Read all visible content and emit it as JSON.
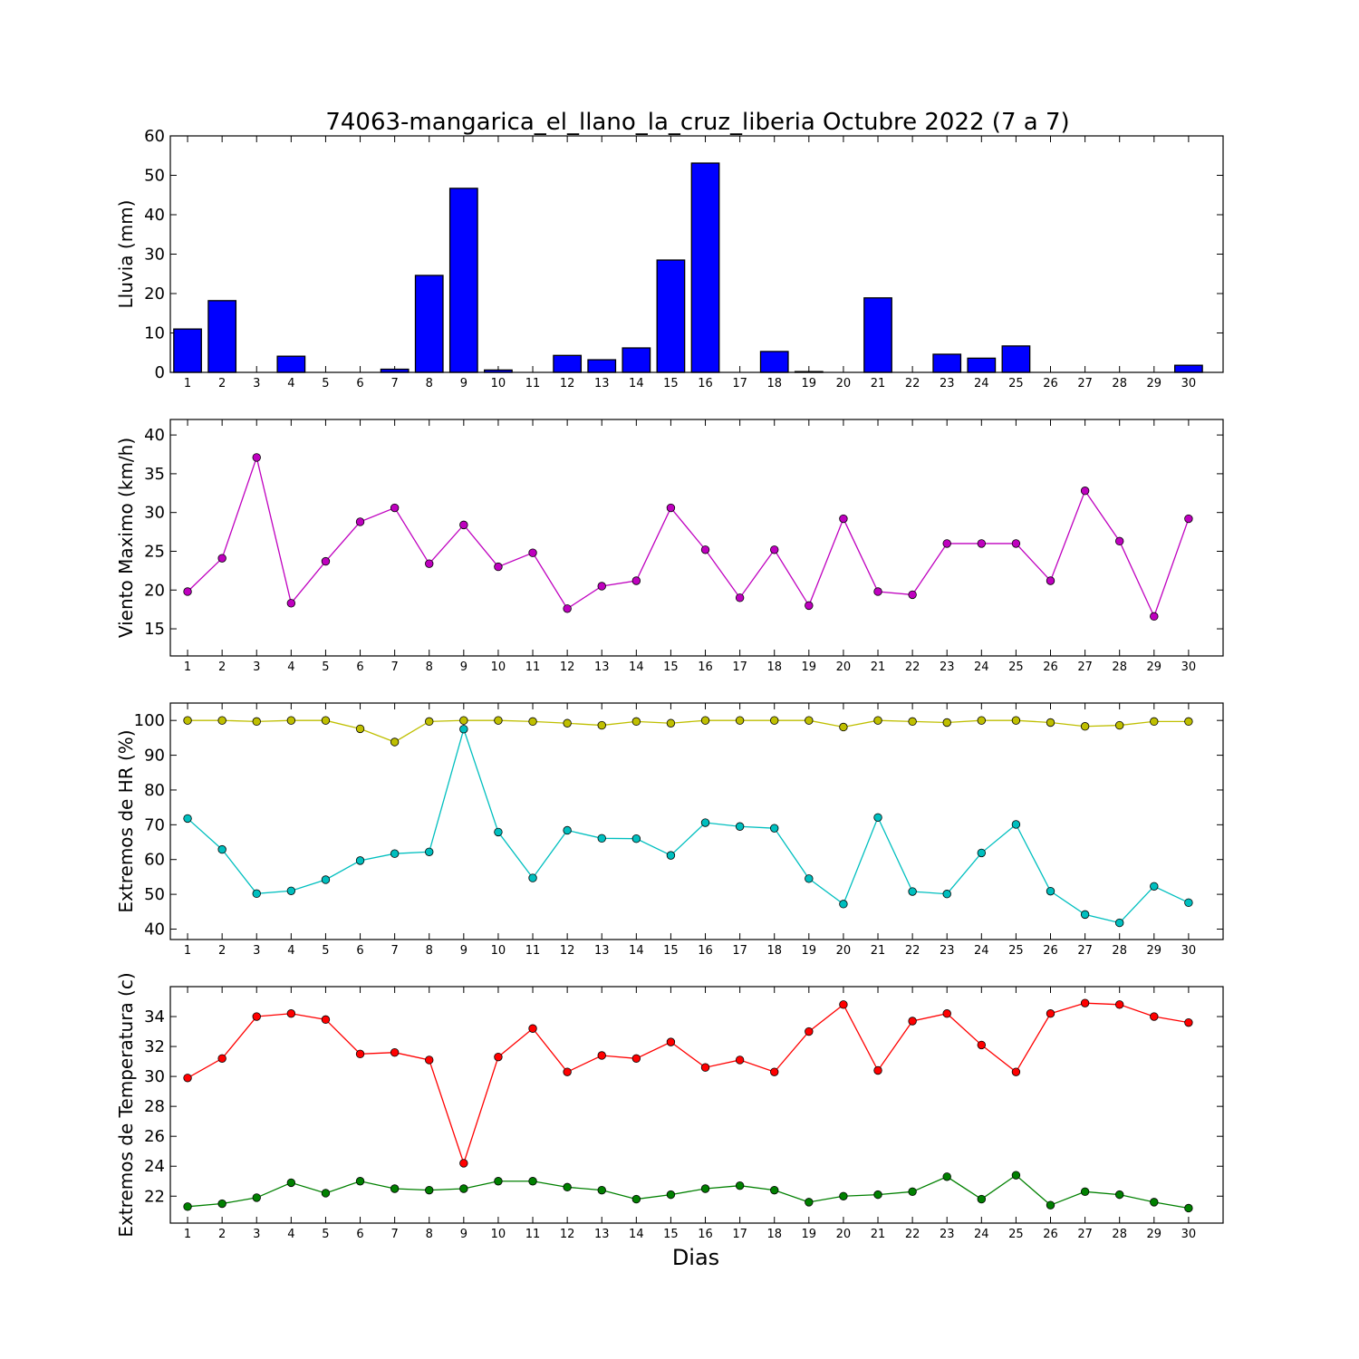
{
  "figure": {
    "title": "74063-mangarica_el_llano_la_cruz_liberia Octubre 2022  (7 a 7)",
    "xlabel": "Dias"
  },
  "chart_data": [
    {
      "type": "bar",
      "ylabel": "Lluvia (mm)",
      "categories": [
        1,
        2,
        3,
        4,
        5,
        6,
        7,
        8,
        9,
        10,
        11,
        12,
        13,
        14,
        15,
        16,
        17,
        18,
        19,
        20,
        21,
        22,
        23,
        24,
        25,
        26,
        27,
        28,
        29,
        30
      ],
      "ylim": [
        0,
        60
      ],
      "yticks": [
        0,
        10,
        20,
        30,
        40,
        50,
        60
      ],
      "series": [
        {
          "color": "#0000ff",
          "values": [
            11.0,
            18.2,
            0,
            4.1,
            0,
            0,
            0.8,
            24.6,
            46.7,
            0.6,
            0,
            4.3,
            3.2,
            6.2,
            28.5,
            53.1,
            0,
            5.3,
            0.2,
            0,
            18.9,
            0,
            4.6,
            3.6,
            6.7,
            0,
            0,
            0,
            0,
            1.8
          ]
        }
      ]
    },
    {
      "type": "line",
      "ylabel": "Viento Maximo (km/h)",
      "x": [
        1,
        2,
        3,
        4,
        5,
        6,
        7,
        8,
        9,
        10,
        11,
        12,
        13,
        14,
        15,
        16,
        17,
        18,
        19,
        20,
        21,
        22,
        23,
        24,
        25,
        26,
        27,
        28,
        29,
        30
      ],
      "ylim": [
        11.5,
        42
      ],
      "yticks": [
        15,
        20,
        25,
        30,
        35,
        40
      ],
      "series": [
        {
          "color": "#bf00bf",
          "values": [
            19.8,
            24.1,
            37.1,
            18.3,
            23.7,
            28.8,
            30.6,
            23.4,
            28.4,
            23.0,
            24.8,
            17.6,
            20.5,
            21.2,
            30.6,
            25.2,
            19.0,
            25.2,
            18.0,
            29.2,
            19.8,
            19.4,
            26.0,
            26.0,
            26.0,
            21.2,
            32.8,
            26.3,
            16.6,
            29.2
          ]
        }
      ]
    },
    {
      "type": "line",
      "ylabel": "Extremos de HR (%)",
      "x": [
        1,
        2,
        3,
        4,
        5,
        6,
        7,
        8,
        9,
        10,
        11,
        12,
        13,
        14,
        15,
        16,
        17,
        18,
        19,
        20,
        21,
        22,
        23,
        24,
        25,
        26,
        27,
        28,
        29,
        30
      ],
      "ylim": [
        37,
        105
      ],
      "yticks": [
        40,
        50,
        60,
        70,
        80,
        90,
        100
      ],
      "series": [
        {
          "color": "#bfbf00",
          "values": [
            100,
            100,
            99.7,
            100,
            100,
            97.6,
            93.8,
            99.7,
            100,
            100,
            99.7,
            99.2,
            98.6,
            99.7,
            99.2,
            100,
            100,
            100,
            100,
            98.1,
            100,
            99.7,
            99.4,
            100,
            100,
            99.4,
            98.3,
            98.6,
            99.7,
            99.7
          ]
        },
        {
          "color": "#00bfbf",
          "values": [
            71.8,
            62.9,
            50.2,
            51.0,
            54.2,
            59.7,
            61.7,
            62.2,
            97.5,
            67.9,
            54.7,
            68.4,
            66.1,
            66.0,
            61.2,
            70.6,
            69.5,
            69.0,
            54.5,
            47.2,
            72.1,
            50.8,
            50.1,
            61.9,
            70.1,
            50.9,
            44.2,
            41.8,
            52.3,
            47.6
          ]
        }
      ]
    },
    {
      "type": "line",
      "ylabel": "Extremos de Temperatura (c)",
      "x": [
        1,
        2,
        3,
        4,
        5,
        6,
        7,
        8,
        9,
        10,
        11,
        12,
        13,
        14,
        15,
        16,
        17,
        18,
        19,
        20,
        21,
        22,
        23,
        24,
        25,
        26,
        27,
        28,
        29,
        30
      ],
      "ylim": [
        20.2,
        36
      ],
      "yticks": [
        22,
        24,
        26,
        28,
        30,
        32,
        34
      ],
      "series": [
        {
          "color": "#ff0000",
          "values": [
            29.9,
            31.2,
            34.0,
            34.2,
            33.8,
            31.5,
            31.6,
            31.1,
            24.2,
            31.3,
            33.2,
            30.3,
            31.4,
            31.2,
            32.3,
            30.6,
            31.1,
            30.3,
            33.0,
            34.8,
            30.4,
            33.7,
            34.2,
            32.1,
            30.3,
            34.2,
            34.9,
            34.8,
            34.0,
            33.6
          ]
        },
        {
          "color": "#008000",
          "values": [
            21.3,
            21.5,
            21.9,
            22.9,
            22.2,
            23.0,
            22.5,
            22.4,
            22.5,
            23.0,
            23.0,
            22.6,
            22.4,
            21.8,
            22.1,
            22.5,
            22.7,
            22.4,
            21.6,
            22.0,
            22.1,
            22.3,
            23.3,
            21.8,
            23.4,
            21.4,
            22.3,
            22.1,
            21.6,
            21.2
          ]
        }
      ]
    }
  ]
}
